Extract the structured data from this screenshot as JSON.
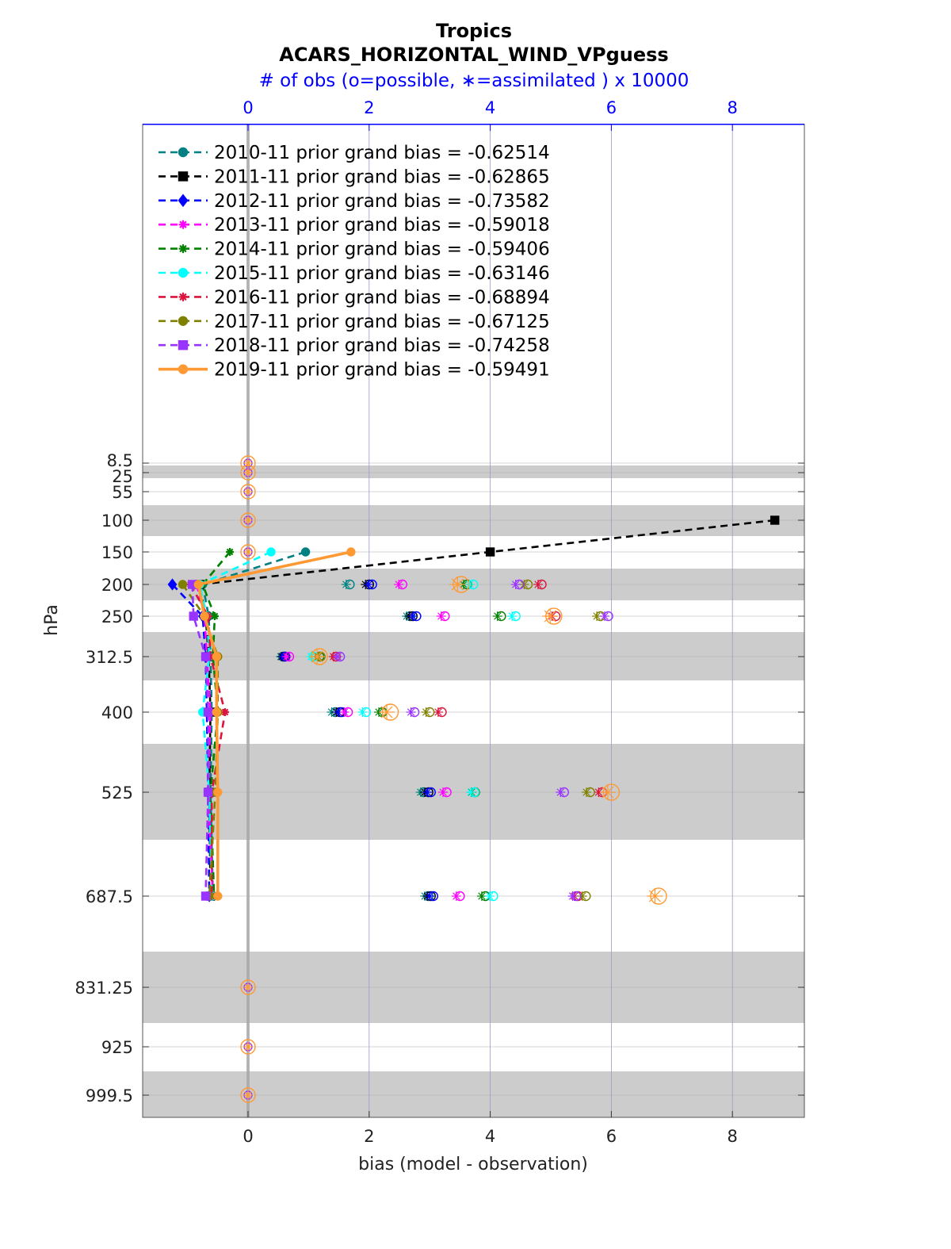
{
  "chart_data": {
    "type": "line",
    "title": "Tropics",
    "subtitle": "ACARS_HORIZONTAL_WIND_VPguess",
    "top_axis_label": "# of obs (o=possible, ∗=assimilated ) x 10000",
    "xlabel": "bias (model - observation)",
    "ylabel": "hPa",
    "xlim": [
      -1.7,
      9.2
    ],
    "x_ticks": [
      "0",
      "2",
      "4",
      "6",
      "8"
    ],
    "top_ticks": [
      "0",
      "2",
      "4",
      "6",
      "8"
    ],
    "y_levels": [
      8.5,
      25,
      55,
      100,
      150,
      200,
      250,
      312.5,
      400,
      525,
      687.5,
      831.25,
      925,
      999.5
    ],
    "y_tick_labels": [
      "8.5",
      "25",
      "55",
      "100",
      "150",
      "200",
      "250",
      "312.5",
      "400",
      "525",
      "687.5",
      "831.25",
      "925",
      "999.5"
    ],
    "series": [
      {
        "name": "2010-11 prior grand bias = -0.62514",
        "color": "#008080",
        "marker": "circle",
        "dashed": true,
        "levels": [
          150,
          200,
          250,
          312.5,
          400,
          525,
          687.5
        ],
        "values": [
          0.95,
          -0.75,
          -0.65,
          -0.62,
          -0.6,
          -0.62,
          -0.58
        ],
        "obs_levels": [
          200,
          250,
          312.5,
          400,
          525,
          687.5
        ],
        "possible": [
          1.68,
          2.68,
          0.58,
          1.44,
          2.9,
          2.98
        ],
        "assimilated": [
          1.62,
          2.62,
          0.54,
          1.38,
          2.85,
          2.92
        ]
      },
      {
        "name": "2011-11 prior grand bias = -0.62865",
        "color": "#000000",
        "marker": "square",
        "dashed": true,
        "levels": [
          100,
          150,
          200,
          250,
          312.5,
          400,
          525,
          687.5
        ],
        "values": [
          8.7,
          4.0,
          -0.8,
          -0.7,
          -0.65,
          -0.62,
          -0.64,
          -0.62
        ],
        "obs_levels": [
          200,
          250,
          312.5,
          400,
          525,
          687.5
        ],
        "possible": [
          2.0,
          2.72,
          0.6,
          1.52,
          2.98,
          3.02
        ],
        "assimilated": [
          1.94,
          2.66,
          0.56,
          1.46,
          2.92,
          2.96
        ]
      },
      {
        "name": "2012-11 prior grand bias = -0.73582",
        "color": "#0000ff",
        "marker": "diamond",
        "dashed": true,
        "levels": [
          200,
          250,
          312.5,
          400,
          525,
          687.5
        ],
        "values": [
          -1.25,
          -0.75,
          -0.7,
          -0.68,
          -0.66,
          -0.64
        ],
        "obs_levels": [
          200,
          250,
          312.5,
          400,
          525,
          687.5
        ],
        "possible": [
          2.05,
          2.78,
          0.62,
          1.55,
          3.02,
          3.06
        ],
        "assimilated": [
          1.99,
          2.72,
          0.58,
          1.49,
          2.96,
          3.0
        ]
      },
      {
        "name": "2013-11 prior grand bias = -0.59018",
        "color": "#ff00ff",
        "marker": "star",
        "dashed": true,
        "levels": [
          200,
          250,
          312.5,
          400,
          525,
          687.5
        ],
        "values": [
          -0.85,
          -0.72,
          -0.68,
          -0.62,
          -0.66,
          -0.58
        ],
        "obs_levels": [
          200,
          250,
          312.5,
          400,
          525,
          687.5
        ],
        "possible": [
          2.55,
          3.25,
          0.68,
          1.65,
          3.28,
          3.5
        ],
        "assimilated": [
          2.49,
          3.19,
          0.64,
          1.59,
          3.22,
          3.44
        ]
      },
      {
        "name": "2014-11 prior grand bias = -0.59406",
        "color": "#008000",
        "marker": "star",
        "dashed": true,
        "levels": [
          150,
          200,
          250,
          312.5,
          400,
          525,
          687.5
        ],
        "values": [
          -0.3,
          -0.75,
          -0.55,
          -0.58,
          -0.5,
          -0.62,
          -0.56
        ],
        "obs_levels": [
          200,
          250,
          312.5,
          400,
          525,
          687.5
        ],
        "possible": [
          3.62,
          4.18,
          1.18,
          2.22,
          3.75,
          3.92
        ],
        "assimilated": [
          3.56,
          4.12,
          1.14,
          2.16,
          3.69,
          3.86
        ]
      },
      {
        "name": "2015-11 prior grand bias = -0.63146",
        "color": "#00ffff",
        "marker": "circle",
        "dashed": true,
        "levels": [
          150,
          200,
          250,
          312.5,
          400,
          525,
          687.5
        ],
        "values": [
          0.38,
          -0.8,
          -0.68,
          -0.64,
          -0.75,
          -0.64,
          -0.6
        ],
        "obs_levels": [
          200,
          250,
          312.5,
          400,
          525,
          687.5
        ],
        "possible": [
          3.72,
          4.42,
          1.08,
          1.95,
          3.74,
          4.05
        ],
        "assimilated": [
          3.66,
          4.36,
          1.04,
          1.89,
          3.68,
          3.99
        ]
      },
      {
        "name": "2016-11 prior grand bias = -0.68894",
        "color": "#dc143c",
        "marker": "star",
        "dashed": true,
        "levels": [
          200,
          250,
          312.5,
          400,
          525,
          687.5
        ],
        "values": [
          -0.95,
          -0.66,
          -0.62,
          -0.38,
          -0.6,
          -0.6
        ],
        "obs_levels": [
          200,
          250,
          312.5,
          400,
          525,
          687.5
        ],
        "possible": [
          4.85,
          5.08,
          1.45,
          3.2,
          5.85,
          5.45
        ],
        "assimilated": [
          4.79,
          5.02,
          1.41,
          3.14,
          5.79,
          5.39
        ]
      },
      {
        "name": "2017-11 prior grand bias = -0.67125",
        "color": "#808000",
        "marker": "circle",
        "dashed": true,
        "levels": [
          200,
          250,
          312.5,
          400,
          525,
          687.5
        ],
        "values": [
          -1.08,
          -0.72,
          -0.5,
          -0.5,
          -0.54,
          -0.64
        ],
        "obs_levels": [
          200,
          250,
          312.5,
          400,
          525,
          687.5
        ],
        "possible": [
          4.62,
          5.82,
          1.2,
          3.0,
          5.65,
          5.58
        ],
        "assimilated": [
          4.56,
          5.76,
          1.16,
          2.94,
          5.59,
          5.52
        ]
      },
      {
        "name": "2018-11 prior grand bias = -0.74258",
        "color": "#9933ff",
        "marker": "square",
        "dashed": true,
        "levels": [
          200,
          250,
          312.5,
          400,
          525,
          687.5
        ],
        "values": [
          -0.92,
          -0.9,
          -0.7,
          -0.66,
          -0.66,
          -0.7
        ],
        "obs_levels": [
          200,
          250,
          312.5,
          400,
          525,
          687.5
        ],
        "possible": [
          4.48,
          5.95,
          1.52,
          2.75,
          5.22,
          5.42
        ],
        "assimilated": [
          4.42,
          5.89,
          1.48,
          2.69,
          5.16,
          5.36
        ]
      },
      {
        "name": "2019-11 prior grand bias = -0.59491",
        "color": "#ff9933",
        "marker": "circle",
        "dashed": false,
        "levels": [
          150,
          200,
          250,
          312.5,
          400,
          525,
          687.5
        ],
        "values": [
          1.7,
          -0.82,
          -0.72,
          -0.52,
          -0.52,
          -0.5,
          -0.5
        ],
        "obs_levels": [
          200,
          250,
          312.5,
          400,
          525,
          687.5
        ],
        "possible": [
          3.52,
          5.05,
          1.18,
          2.35,
          6.0,
          6.78
        ],
        "assimilated": [
          3.46,
          4.99,
          1.14,
          2.29,
          5.94,
          6.72
        ]
      }
    ],
    "zero_obs_levels": [
      8.5,
      25,
      55,
      100,
      150,
      831.25,
      925,
      999.5
    ]
  }
}
